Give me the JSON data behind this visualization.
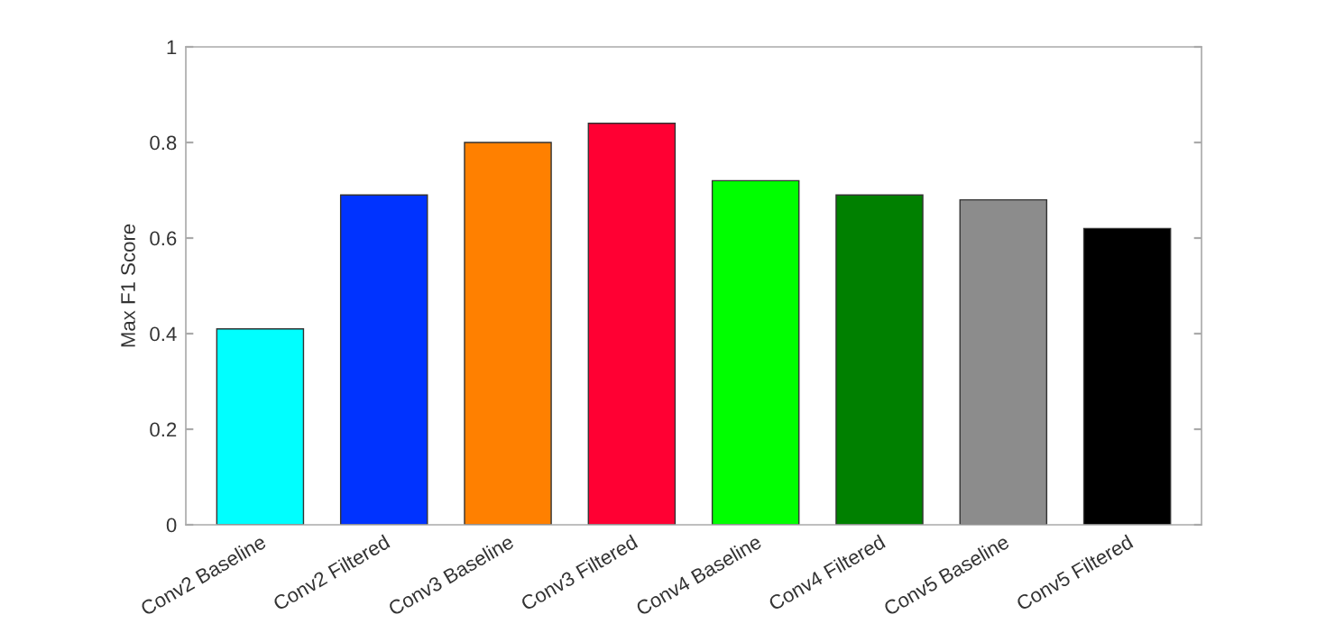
{
  "chart_data": {
    "type": "bar",
    "ylabel": "Max F1 Score",
    "categories": [
      "Conv2 Baseline",
      "Conv2 Filtered",
      "Conv3 Baseline",
      "Conv3 Filtered",
      "Conv4 Baseline",
      "Conv4 Filtered",
      "Conv5 Baseline",
      "Conv5 Filtered"
    ],
    "values": [
      0.41,
      0.69,
      0.8,
      0.84,
      0.72,
      0.69,
      0.68,
      0.62
    ],
    "colors": [
      "#00ffff",
      "#0033ff",
      "#ff8000",
      "#ff0033",
      "#00ff00",
      "#008000",
      "#8c8c8c",
      "#000000"
    ],
    "ylim": [
      0,
      1
    ],
    "yticks": [
      0,
      {
        "value": 0.2,
        "label": "0.2"
      },
      {
        "value": 0.4,
        "label": "0.4"
      },
      {
        "value": 0.6,
        "label": "0.6"
      },
      {
        "value": 0.8,
        "label": "0.8"
      },
      1
    ],
    "grid": false
  }
}
